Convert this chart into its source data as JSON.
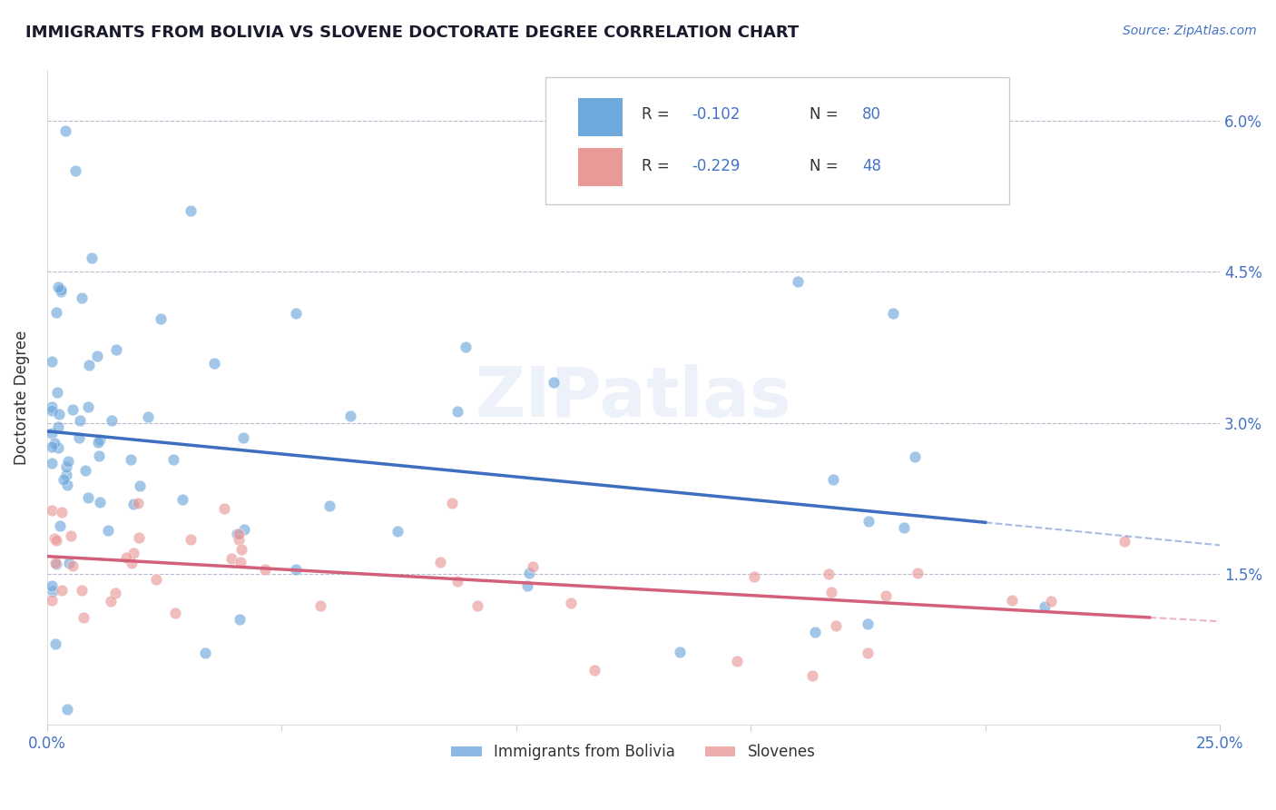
{
  "title": "IMMIGRANTS FROM BOLIVIA VS SLOVENE DOCTORATE DEGREE CORRELATION CHART",
  "source": "Source: ZipAtlas.com",
  "ylabel": "Doctorate Degree",
  "xlim": [
    0.0,
    0.25
  ],
  "ylim": [
    0.0,
    0.065
  ],
  "xtick_positions": [
    0.0,
    0.05,
    0.1,
    0.15,
    0.2,
    0.25
  ],
  "xticklabels": [
    "0.0%",
    "",
    "",
    "",
    "",
    "25.0%"
  ],
  "ytick_positions": [
    0.0,
    0.015,
    0.03,
    0.045,
    0.06
  ],
  "yticklabels_right": [
    "",
    "1.5%",
    "3.0%",
    "4.5%",
    "6.0%"
  ],
  "title_color": "#1a1a2e",
  "axis_color": "#4472c4",
  "background_color": "#ffffff",
  "watermark": "ZIPatlas",
  "legend_r1": "-0.102",
  "legend_n1": "80",
  "legend_r2": "-0.229",
  "legend_n2": "48",
  "color_blue": "#6fa8dc",
  "color_pink": "#ea9999",
  "line_blue": "#3d6ebf",
  "line_pink": "#d45f7a",
  "legend_label1": "Immigrants from Bolivia",
  "legend_label2": "Slovenes"
}
